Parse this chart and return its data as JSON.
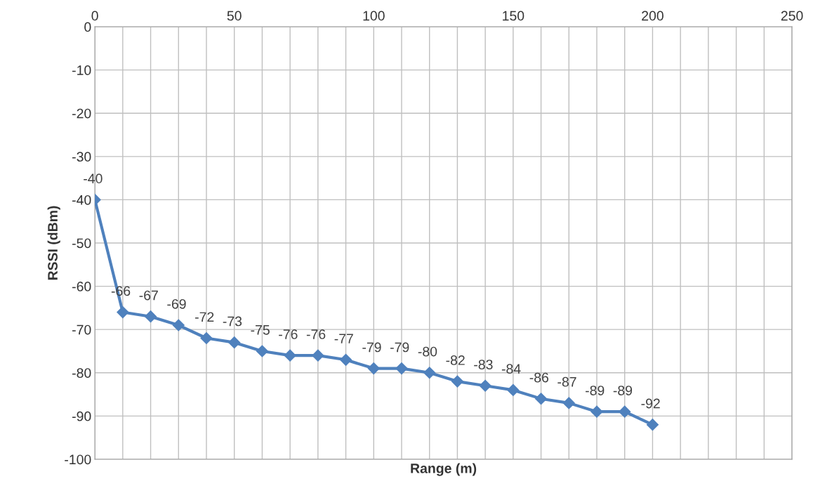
{
  "chart_data": {
    "type": "line",
    "xlabel": "Range (m)",
    "ylabel": "RSSI (dBm)",
    "x": [
      0,
      10,
      20,
      30,
      40,
      50,
      60,
      70,
      80,
      90,
      100,
      110,
      120,
      130,
      140,
      150,
      160,
      170,
      180,
      190,
      200
    ],
    "series": [
      {
        "color": "#4f81bd",
        "values": [
          -40,
          -66,
          -67,
          -69,
          -72,
          -73,
          -75,
          -76,
          -76,
          -77,
          -79,
          -79,
          -80,
          -82,
          -83,
          -84,
          -86,
          -87,
          -89,
          -89,
          -92
        ]
      }
    ],
    "xlim": [
      0,
      250
    ],
    "ylim": [
      -100,
      0
    ],
    "xticks": [
      0,
      {
        "value": 10,
        "label": null
      },
      {
        "value": 20,
        "label": null
      },
      {
        "value": 30,
        "label": null
      },
      {
        "value": 40,
        "label": null
      },
      50,
      {
        "value": 60,
        "label": null
      },
      {
        "value": 70,
        "label": null
      },
      {
        "value": 80,
        "label": null
      },
      {
        "value": 90,
        "label": null
      },
      100,
      {
        "value": 110,
        "label": null
      },
      {
        "value": 120,
        "label": null
      },
      {
        "value": 130,
        "label": null
      },
      {
        "value": 140,
        "label": null
      },
      150,
      {
        "value": 160,
        "label": null
      },
      {
        "value": 170,
        "label": null
      },
      {
        "value": 180,
        "label": null
      },
      {
        "value": 190,
        "label": null
      },
      200,
      {
        "value": 210,
        "label": null
      },
      {
        "value": 220,
        "label": null
      },
      {
        "value": 230,
        "label": null
      },
      {
        "value": 240,
        "label": null
      },
      250
    ],
    "yticks": [
      -100,
      -90,
      -80,
      -70,
      -60,
      -50,
      -40,
      -30,
      -20,
      -10,
      0
    ],
    "grid": true,
    "marker": "diamond",
    "line_style": "solid",
    "data_labels": true
  }
}
